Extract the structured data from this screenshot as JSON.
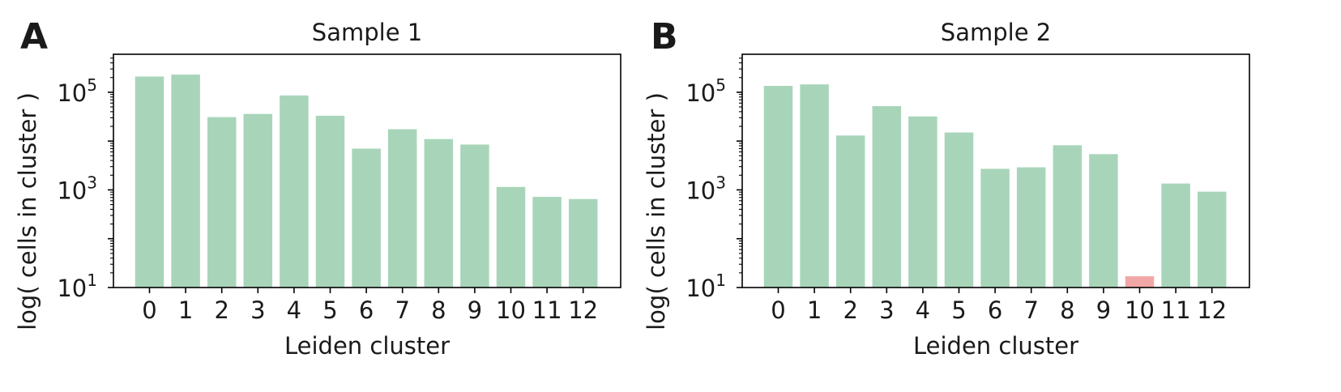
{
  "chart_data": [
    {
      "panel_label": "A",
      "type": "bar",
      "title": "Sample 1",
      "xlabel": "Leiden cluster",
      "ylabel": "log( cells in cluster )",
      "yscale": "log",
      "ylim": [
        10,
        600000
      ],
      "yticks": [
        10,
        1000,
        100000
      ],
      "ytick_bases": [
        "10",
        "10",
        "10"
      ],
      "ytick_exponents": [
        "1",
        "3",
        "5"
      ],
      "categories": [
        "0",
        "1",
        "2",
        "3",
        "4",
        "5",
        "6",
        "7",
        "8",
        "9",
        "10",
        "11",
        "12"
      ],
      "values": [
        210000,
        230000,
        31000,
        36000,
        86000,
        33000,
        7000,
        17500,
        11000,
        8500,
        1150,
        720,
        650
      ],
      "colors": [
        "#a8d5b9",
        "#a8d5b9",
        "#a8d5b9",
        "#a8d5b9",
        "#a8d5b9",
        "#a8d5b9",
        "#a8d5b9",
        "#a8d5b9",
        "#a8d5b9",
        "#a8d5b9",
        "#a8d5b9",
        "#a8d5b9",
        "#a8d5b9"
      ],
      "grid": false
    },
    {
      "panel_label": "B",
      "type": "bar",
      "title": "Sample 2",
      "xlabel": "Leiden cluster",
      "ylabel": "log( cells in cluster )",
      "yscale": "log",
      "ylim": [
        10,
        600000
      ],
      "yticks": [
        10,
        1000,
        100000
      ],
      "ytick_bases": [
        "10",
        "10",
        "10"
      ],
      "ytick_exponents": [
        "1",
        "3",
        "5"
      ],
      "categories": [
        "0",
        "1",
        "2",
        "3",
        "4",
        "5",
        "6",
        "7",
        "8",
        "9",
        "10",
        "11",
        "12"
      ],
      "values": [
        135000,
        145000,
        13000,
        52000,
        32000,
        15000,
        2700,
        2900,
        8200,
        5400,
        17,
        1350,
        920
      ],
      "colors": [
        "#a8d5b9",
        "#a8d5b9",
        "#a8d5b9",
        "#a8d5b9",
        "#a8d5b9",
        "#a8d5b9",
        "#a8d5b9",
        "#a8d5b9",
        "#a8d5b9",
        "#a8d5b9",
        "#f2a7a7",
        "#a8d5b9",
        "#a8d5b9"
      ],
      "grid": false
    }
  ]
}
